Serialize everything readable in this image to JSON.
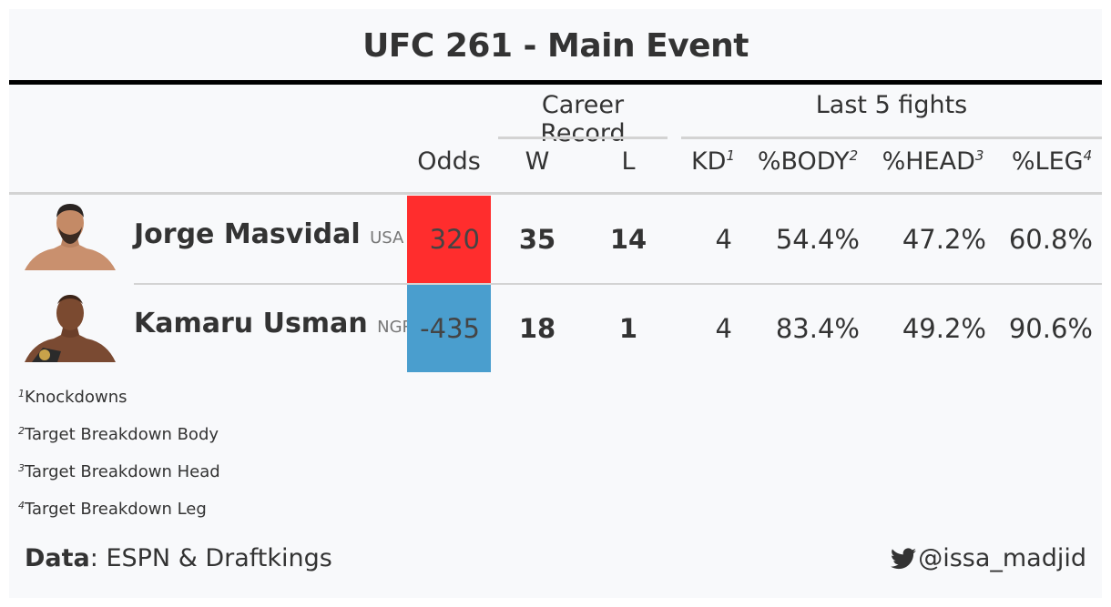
{
  "title": "UFC 261 - Main Event",
  "spanners": {
    "career": "Career Record",
    "last5": "Last 5 fights"
  },
  "columns": {
    "odds": "Odds",
    "w": "W",
    "l": "L",
    "kd": "KD",
    "kd_note": "1",
    "body": "%BODY",
    "body_note": "2",
    "head": "%HEAD",
    "head_note": "3",
    "leg": "%LEG",
    "leg_note": "4"
  },
  "rows": [
    {
      "name": "Jorge Masvidal",
      "country": "USA",
      "odds": "320",
      "odds_color": "#ff2d2d",
      "w": "35",
      "l": "14",
      "kd": "4",
      "body": "54.4%",
      "head": "47.2%",
      "leg": "60.8%"
    },
    {
      "name": "Kamaru Usman",
      "country": "NGR",
      "odds": "-435",
      "odds_color": "#4a9ece",
      "w": "18",
      "l": "1",
      "kd": "4",
      "body": "83.4%",
      "head": "49.2%",
      "leg": "90.6%"
    }
  ],
  "footnotes": [
    {
      "mark": "1",
      "text": "Knockdowns"
    },
    {
      "mark": "2",
      "text": "Target Breakdown Body"
    },
    {
      "mark": "3",
      "text": "Target Breakdown Head"
    },
    {
      "mark": "4",
      "text": "Target Breakdown Leg"
    }
  ],
  "source": {
    "label": "Data",
    "text": ": ESPN & Draftkings"
  },
  "credit": {
    "icon": "twitter-bird-icon",
    "handle": "@issa_madjid"
  }
}
